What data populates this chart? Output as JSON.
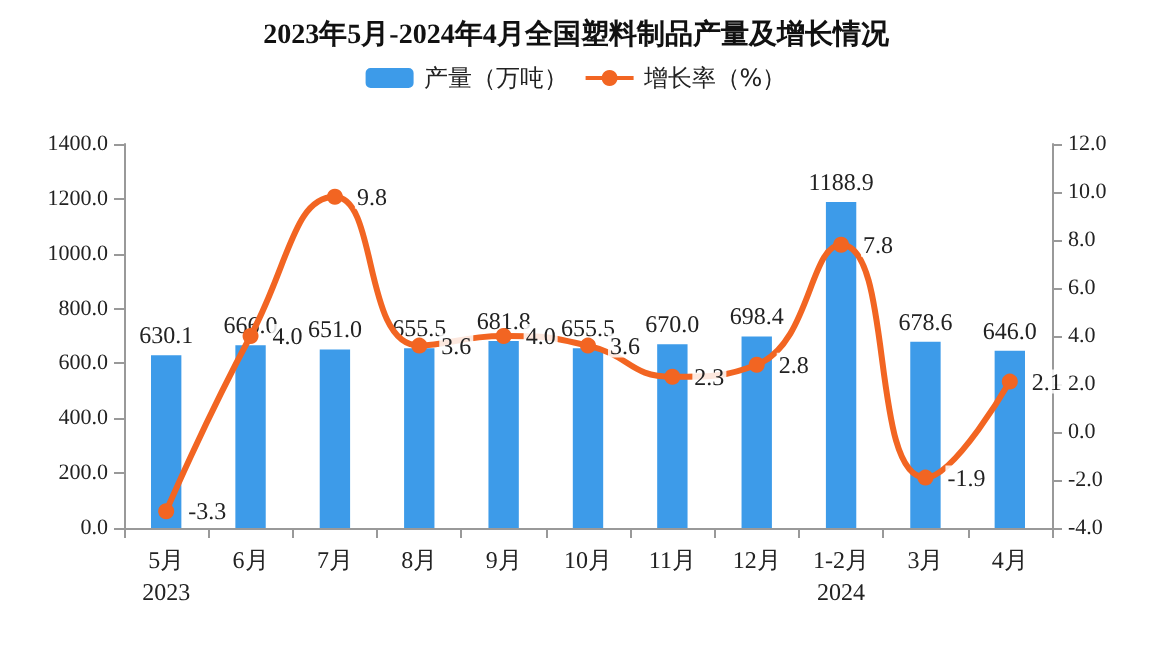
{
  "chart_data": {
    "type": "bar",
    "title": "2023年5月-2024年4月全国塑料制品产量及增长情况",
    "categories": [
      "5月\n2023",
      "6月",
      "7月",
      "8月",
      "9月",
      "10月",
      "11月",
      "12月",
      "1-2月\n2024",
      "3月",
      "4月"
    ],
    "series": [
      {
        "name": "产量（万吨）",
        "color": "#3d9be9",
        "values": [
          630.1,
          666.0,
          651.0,
          655.5,
          681.8,
          655.5,
          670.0,
          698.4,
          1188.9,
          678.6,
          646.0
        ],
        "value_labels": [
          "630.1",
          "666.0",
          "651.0",
          "655.5",
          "681.8",
          "655.5",
          "670.0",
          "698.4",
          "1188.9",
          "678.6",
          "646.0"
        ]
      },
      {
        "name": "增长率（%）",
        "type": "line",
        "axis": "y2",
        "color": "#f26522",
        "marker": "circle",
        "values": [
          -3.3,
          4.0,
          9.8,
          3.6,
          4.0,
          3.6,
          2.3,
          2.8,
          7.8,
          -1.9,
          2.1
        ],
        "value_labels": [
          "-3.3",
          "4.0",
          "9.8",
          "3.6",
          "4.0",
          "3.6",
          "2.3",
          "2.8",
          "7.8",
          "-1.9",
          "2.1"
        ]
      }
    ],
    "ylim": [
      0,
      1400
    ],
    "yticks": [
      {
        "value": 0,
        "label": "0.0"
      },
      {
        "value": 200,
        "label": "200.0"
      },
      {
        "value": 400,
        "label": "400.0"
      },
      {
        "value": 600,
        "label": "600.0"
      },
      {
        "value": 800,
        "label": "800.0"
      },
      {
        "value": 1000,
        "label": "1000.0"
      },
      {
        "value": 1200,
        "label": "1200.0"
      },
      {
        "value": 1400,
        "label": "1400.0"
      }
    ],
    "y2lim": [
      -4,
      12
    ],
    "y2ticks": [
      {
        "value": -4,
        "label": "-4.0"
      },
      {
        "value": -2,
        "label": "-2.0"
      },
      {
        "value": 0,
        "label": "0.0"
      },
      {
        "value": 2,
        "label": "2.0"
      },
      {
        "value": 4,
        "label": "4.0"
      },
      {
        "value": 6,
        "label": "6.0"
      },
      {
        "value": 8,
        "label": "8.0"
      },
      {
        "value": 10,
        "label": "10.0"
      },
      {
        "value": 12,
        "label": "12.0"
      }
    ],
    "grid": false,
    "legend": "top"
  }
}
